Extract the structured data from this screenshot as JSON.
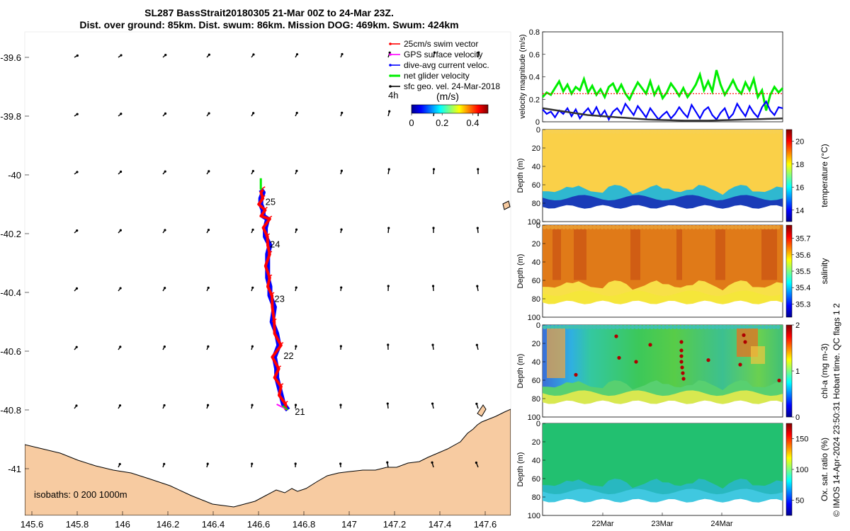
{
  "title_line1": "SL287 BassStrait20180305 21-Mar 00Z to 24-Mar 23Z.",
  "title_line2": "Dist. over ground: 85km. Dist. swum: 86km. Mission DOG: 469km. Swum: 424km",
  "credit": "© IMOS 14-Apr-2024 23:50:31 Hobart time. QC flags 1  2",
  "colors": {
    "land": "#f7cba1",
    "swim": "#ff0000",
    "gps": "#ff00ff",
    "current": "#0000ff",
    "net": "#00ee00",
    "geo": "#000000"
  },
  "chart_data": [
    {
      "type": "scatter",
      "name": "glider-track-map",
      "xlabel": "",
      "ylabel": "",
      "xlim": [
        145.6,
        147.75
      ],
      "ylim": [
        -41.15,
        -39.52
      ],
      "x_ticks": [
        "145.6",
        "145.8",
        "146",
        "146.2",
        "146.4",
        "146.6",
        "146.8",
        "147",
        "147.2",
        "147.4",
        "147.6"
      ],
      "y_ticks": [
        "-39.6",
        "-39.8",
        "-40",
        "-40.2",
        "-40.4",
        "-40.6",
        "-40.8",
        "-41"
      ],
      "track": {
        "lon": [
          146.73,
          146.71,
          146.7,
          146.69,
          146.68,
          146.68,
          146.67,
          146.69,
          146.68,
          146.66,
          146.67,
          146.65,
          146.65,
          146.64,
          146.64,
          146.64,
          146.65,
          146.63,
          146.63,
          146.64,
          146.62,
          146.62,
          146.61,
          146.61,
          146.62,
          146.61
        ],
        "lat": [
          -40.8,
          -40.78,
          -40.75,
          -40.72,
          -40.69,
          -40.66,
          -40.62,
          -40.58,
          -40.54,
          -40.5,
          -40.45,
          -40.41,
          -40.38,
          -40.35,
          -40.31,
          -40.27,
          -40.24,
          -40.21,
          -40.18,
          -40.15,
          -40.14,
          -40.12,
          -40.1,
          -40.08,
          -40.06,
          -40.05
        ]
      },
      "day_labels": [
        {
          "text": "21",
          "lon": 146.76,
          "lat": -40.805
        },
        {
          "text": "22",
          "lon": 146.71,
          "lat": -40.615
        },
        {
          "text": "23",
          "lon": 146.67,
          "lat": -40.42
        },
        {
          "text": "24",
          "lon": 146.65,
          "lat": -40.235
        },
        {
          "text": "25",
          "lon": 146.63,
          "lat": -40.09
        }
      ],
      "legend_entries": [
        {
          "label": "25cm/s swim vector",
          "color": "#ff0000"
        },
        {
          "label": "GPS surface velocity",
          "color": "#ff00ff"
        },
        {
          "label": "dive-avg current veloc.",
          "color": "#0000ff"
        },
        {
          "label": "net glider velocity",
          "color": "#00ee00"
        },
        {
          "label": "sfc geo. vel. 24-Mar-2018",
          "color": "#000000"
        }
      ],
      "legend_interval": "4h",
      "colorbar": {
        "label": "(m/s)",
        "ticks": [
          "0",
          "0.2",
          "0.4"
        ],
        "range": [
          0,
          0.5
        ]
      },
      "isobaths_label": "isobaths: 0   200  1000m"
    },
    {
      "type": "line",
      "name": "velocity-magnitude",
      "ylabel": "velocity magnitude (m/s)",
      "ylim": [
        0,
        0.8
      ],
      "y_ticks": [
        "0",
        "0.2",
        "0.4",
        "0.6",
        "0.8"
      ],
      "series": [
        {
          "name": "net glider velocity",
          "color": "#00ee00",
          "values": [
            0.22,
            0.26,
            0.24,
            0.3,
            0.36,
            0.27,
            0.33,
            0.25,
            0.31,
            0.28,
            0.38,
            0.26,
            0.32,
            0.24,
            0.29,
            0.22,
            0.31,
            0.34,
            0.26,
            0.33,
            0.25,
            0.2,
            0.28,
            0.35,
            0.3,
            0.25,
            0.36,
            0.24,
            0.31,
            0.21,
            0.26,
            0.34,
            0.29,
            0.23,
            0.3,
            0.22,
            0.27,
            0.33,
            0.42,
            0.28,
            0.36,
            0.27,
            0.46,
            0.33,
            0.24,
            0.3,
            0.37,
            0.29,
            0.25,
            0.35,
            0.28,
            0.38,
            0.22,
            0.28,
            0.1,
            0.24,
            0.31,
            0.26,
            0.3
          ]
        },
        {
          "name": "swim vector",
          "color": "#ff0000",
          "values": [
            0.25,
            0.25,
            0.25,
            0.25,
            0.25,
            0.25,
            0.25,
            0.25,
            0.25,
            0.25,
            0.25,
            0.25,
            0.25,
            0.25,
            0.25,
            0.25,
            0.25,
            0.25,
            0.25,
            0.25,
            0.25,
            0.25,
            0.25,
            0.25,
            0.25,
            0.25,
            0.25,
            0.25,
            0.25,
            0.25,
            0.25,
            0.25,
            0.25,
            0.25,
            0.25,
            0.25,
            0.25,
            0.25,
            0.25,
            0.25,
            0.25,
            0.25,
            0.25,
            0.25,
            0.25,
            0.25,
            0.25,
            0.25,
            0.25,
            0.25,
            0.25,
            0.25,
            0.25,
            0.25,
            0.25,
            0.25,
            0.25,
            0.25,
            0.25
          ]
        },
        {
          "name": "dive-avg current",
          "color": "#0000ff",
          "values": [
            0.11,
            0.07,
            0.09,
            0.04,
            0.1,
            0.07,
            0.12,
            0.05,
            0.11,
            0.03,
            0.08,
            0.12,
            0.06,
            0.13,
            0.05,
            0.1,
            0.02,
            0.09,
            0.12,
            0.07,
            0.16,
            0.11,
            0.06,
            0.14,
            0.09,
            0.04,
            0.12,
            0.07,
            0.02,
            0.06,
            0.09,
            0.03,
            0.07,
            0.13,
            0.08,
            0.04,
            0.15,
            0.09,
            0.03,
            0.1,
            0.13,
            0.06,
            0.02,
            0.08,
            0.12,
            0.03,
            0.07,
            0.16,
            0.1,
            0.05,
            0.14,
            0.08,
            0.04,
            0.13,
            0.18,
            0.1,
            0.06,
            0.13,
            0.12
          ]
        },
        {
          "name": "sfc geo. vel.",
          "color": "#333333",
          "values": [
            0.12,
            0.11,
            0.1,
            0.09,
            0.08,
            0.07,
            0.06,
            0.055,
            0.05,
            0.045,
            0.04,
            0.035,
            0.03,
            0.025,
            0.02,
            0.018,
            0.016,
            0.014,
            0.012,
            0.01,
            0.01,
            0.01,
            0.01,
            0.012,
            0.014,
            0.016,
            0.018,
            0.02,
            0.022,
            0.024,
            0.026,
            0.028,
            0.03
          ]
        }
      ]
    },
    {
      "type": "heatmap",
      "name": "temperature-section",
      "ylabel": "Depth (m)",
      "colorbar_label": "temperature (°C)",
      "ylim": [
        0,
        100
      ],
      "y_ticks": [
        "0",
        "20",
        "40",
        "60",
        "80",
        "100"
      ],
      "colorbar_ticks": [
        "14",
        "16",
        "18",
        "20"
      ],
      "crange": [
        13,
        21
      ]
    },
    {
      "type": "heatmap",
      "name": "salinity-section",
      "ylabel": "Depth (m)",
      "colorbar_label": "salinity",
      "ylim": [
        0,
        100
      ],
      "y_ticks": [
        "0",
        "20",
        "40",
        "60",
        "80",
        "100"
      ],
      "colorbar_ticks": [
        "35.3",
        "35.4",
        "35.5",
        "35.6",
        "35.7"
      ],
      "crange": [
        35.22,
        35.78
      ]
    },
    {
      "type": "heatmap",
      "name": "chla-section",
      "ylabel": "Depth (m)",
      "colorbar_label": "chl-a (mg m-3)",
      "ylim": [
        0,
        100
      ],
      "y_ticks": [
        "0",
        "20",
        "40",
        "60",
        "80",
        "100"
      ],
      "colorbar_ticks": [
        "0",
        "1",
        "2"
      ],
      "crange": [
        0,
        2
      ]
    },
    {
      "type": "heatmap",
      "name": "oxygen-section",
      "ylabel": "Depth (m)",
      "colorbar_label": "Ox. sat. ratio (%)",
      "ylim": [
        0,
        100
      ],
      "y_ticks": [
        "0",
        "20",
        "40",
        "60",
        "80",
        "100"
      ],
      "colorbar_ticks": [
        "50",
        "100",
        "150"
      ],
      "crange": [
        25,
        175
      ],
      "x_ticks": [
        "22Mar",
        "23Mar",
        "24Mar"
      ]
    }
  ]
}
